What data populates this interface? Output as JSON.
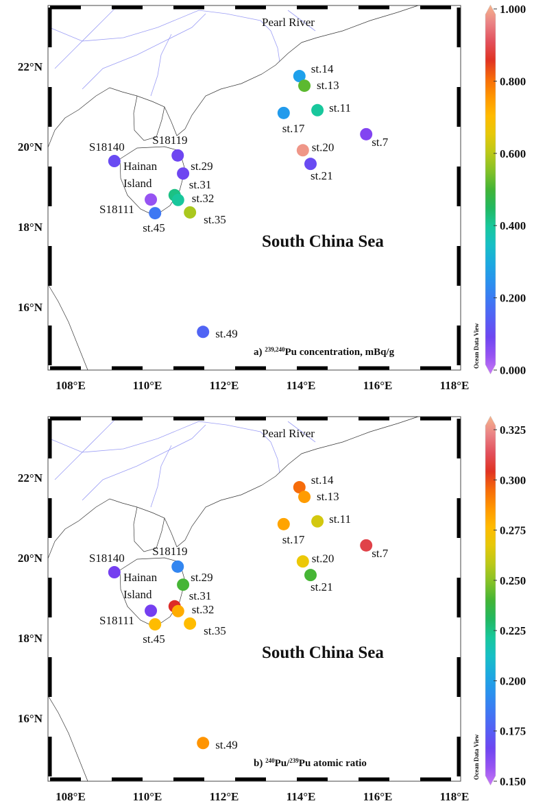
{
  "stations": [
    "st.14",
    "st.13",
    "st.17",
    "st.11",
    "st.7",
    "st.20",
    "st.21",
    "S18140",
    "S18119",
    "st.29",
    "st.31",
    "st.32",
    "S18111",
    "st.45",
    "st.35",
    "st.49"
  ],
  "place_labels": {
    "river": "Pearl River",
    "island_line1": "Hainan",
    "island_line2": "Island",
    "sea": "South China Sea"
  },
  "watermark": "Ocean Data View",
  "chart_data": [
    {
      "type": "scatter",
      "panel": "a)",
      "title_prefix": "a) ",
      "title_sup": "239,240",
      "title_rest": "Pu concentration, mBq/g",
      "x_ticks": [
        "108°E",
        "110°E",
        "112°E",
        "114°E",
        "116°E",
        "118°E"
      ],
      "y_ticks": [
        "16°N",
        "18°N",
        "20°N",
        "22°N"
      ],
      "xlim": [
        107.4,
        118.2
      ],
      "ylim": [
        14.4,
        23.5
      ],
      "colorbar": {
        "range": [
          0,
          1
        ],
        "ticks": [
          "0.000",
          "0.200",
          "0.400",
          "0.600",
          "0.800",
          "1.000"
        ]
      },
      "points": [
        {
          "name": "st.14",
          "lon": 113.96,
          "lat": 21.76,
          "value": 0.28
        },
        {
          "name": "st.13",
          "lon": 114.09,
          "lat": 21.52,
          "value": 0.52
        },
        {
          "name": "st.17",
          "lon": 113.55,
          "lat": 20.84,
          "value": 0.27
        },
        {
          "name": "st.11",
          "lon": 114.43,
          "lat": 20.91,
          "value": 0.4
        },
        {
          "name": "st.7",
          "lon": 115.7,
          "lat": 20.31,
          "value": 0.07
        },
        {
          "name": "st.20",
          "lon": 114.05,
          "lat": 19.91,
          "value": 0.97
        },
        {
          "name": "st.21",
          "lon": 114.25,
          "lat": 19.57,
          "value": 0.11
        },
        {
          "name": "S18140",
          "lon": 109.14,
          "lat": 19.64,
          "value": 0.11
        },
        {
          "name": "S18119",
          "lon": 110.79,
          "lat": 19.78,
          "value": 0.1
        },
        {
          "name": "st.29",
          "lon": 110.93,
          "lat": 19.33,
          "value": 0.1
        },
        {
          "name": "st.31",
          "lon": 110.71,
          "lat": 18.79,
          "value": 0.42
        },
        {
          "name": "st.32",
          "lon": 110.8,
          "lat": 18.67,
          "value": 0.4
        },
        {
          "name": "S18111",
          "lon": 110.09,
          "lat": 18.68,
          "value": 0.05
        },
        {
          "name": "st.45",
          "lon": 110.2,
          "lat": 18.34,
          "value": 0.2
        },
        {
          "name": "st.35",
          "lon": 111.11,
          "lat": 18.36,
          "value": 0.58
        },
        {
          "name": "st.49",
          "lon": 111.45,
          "lat": 15.38,
          "value": 0.16
        }
      ]
    },
    {
      "type": "scatter",
      "panel": "b)",
      "title_prefix": "b) ",
      "title_sup": "240",
      "title_mid": "Pu/",
      "title_sup2": "239",
      "title_rest": "Pu atomic ratio",
      "x_ticks": [
        "108°E",
        "110°E",
        "112°E",
        "114°E",
        "116°E",
        "118°E"
      ],
      "y_ticks": [
        "16°N",
        "18°N",
        "20°N",
        "22°N"
      ],
      "xlim": [
        107.4,
        118.2
      ],
      "ylim": [
        14.4,
        23.5
      ],
      "colorbar": {
        "range": [
          0.15,
          0.325
        ],
        "ticks": [
          "0.150",
          "0.175",
          "0.200",
          "0.225",
          "0.250",
          "0.275",
          "0.300",
          "0.325"
        ]
      },
      "points": [
        {
          "name": "st.14",
          "lon": 113.96,
          "lat": 21.76,
          "value": 0.29
        },
        {
          "name": "st.13",
          "lon": 114.09,
          "lat": 21.52,
          "value": 0.28
        },
        {
          "name": "st.17",
          "lon": 113.55,
          "lat": 20.84,
          "value": 0.278
        },
        {
          "name": "st.11",
          "lon": 114.43,
          "lat": 20.91,
          "value": 0.26
        },
        {
          "name": "st.7",
          "lon": 115.7,
          "lat": 20.31,
          "value": 0.305
        },
        {
          "name": "st.20",
          "lon": 114.05,
          "lat": 19.91,
          "value": 0.265
        },
        {
          "name": "st.21",
          "lon": 114.25,
          "lat": 19.57,
          "value": 0.238
        },
        {
          "name": "S18140",
          "lon": 109.14,
          "lat": 19.64,
          "value": 0.165
        },
        {
          "name": "S18119",
          "lon": 110.79,
          "lat": 19.78,
          "value": 0.19
        },
        {
          "name": "st.29",
          "lon": 110.93,
          "lat": 19.33,
          "value": 0.238
        },
        {
          "name": "st.31",
          "lon": 110.71,
          "lat": 18.79,
          "value": 0.3
        },
        {
          "name": "st.32",
          "lon": 110.8,
          "lat": 18.67,
          "value": 0.276
        },
        {
          "name": "S18111",
          "lon": 110.09,
          "lat": 18.68,
          "value": 0.165
        },
        {
          "name": "st.45",
          "lon": 110.2,
          "lat": 18.34,
          "value": 0.272
        },
        {
          "name": "st.35",
          "lon": 111.11,
          "lat": 18.36,
          "value": 0.272
        },
        {
          "name": "st.49",
          "lon": 111.45,
          "lat": 15.38,
          "value": 0.282
        }
      ]
    }
  ]
}
